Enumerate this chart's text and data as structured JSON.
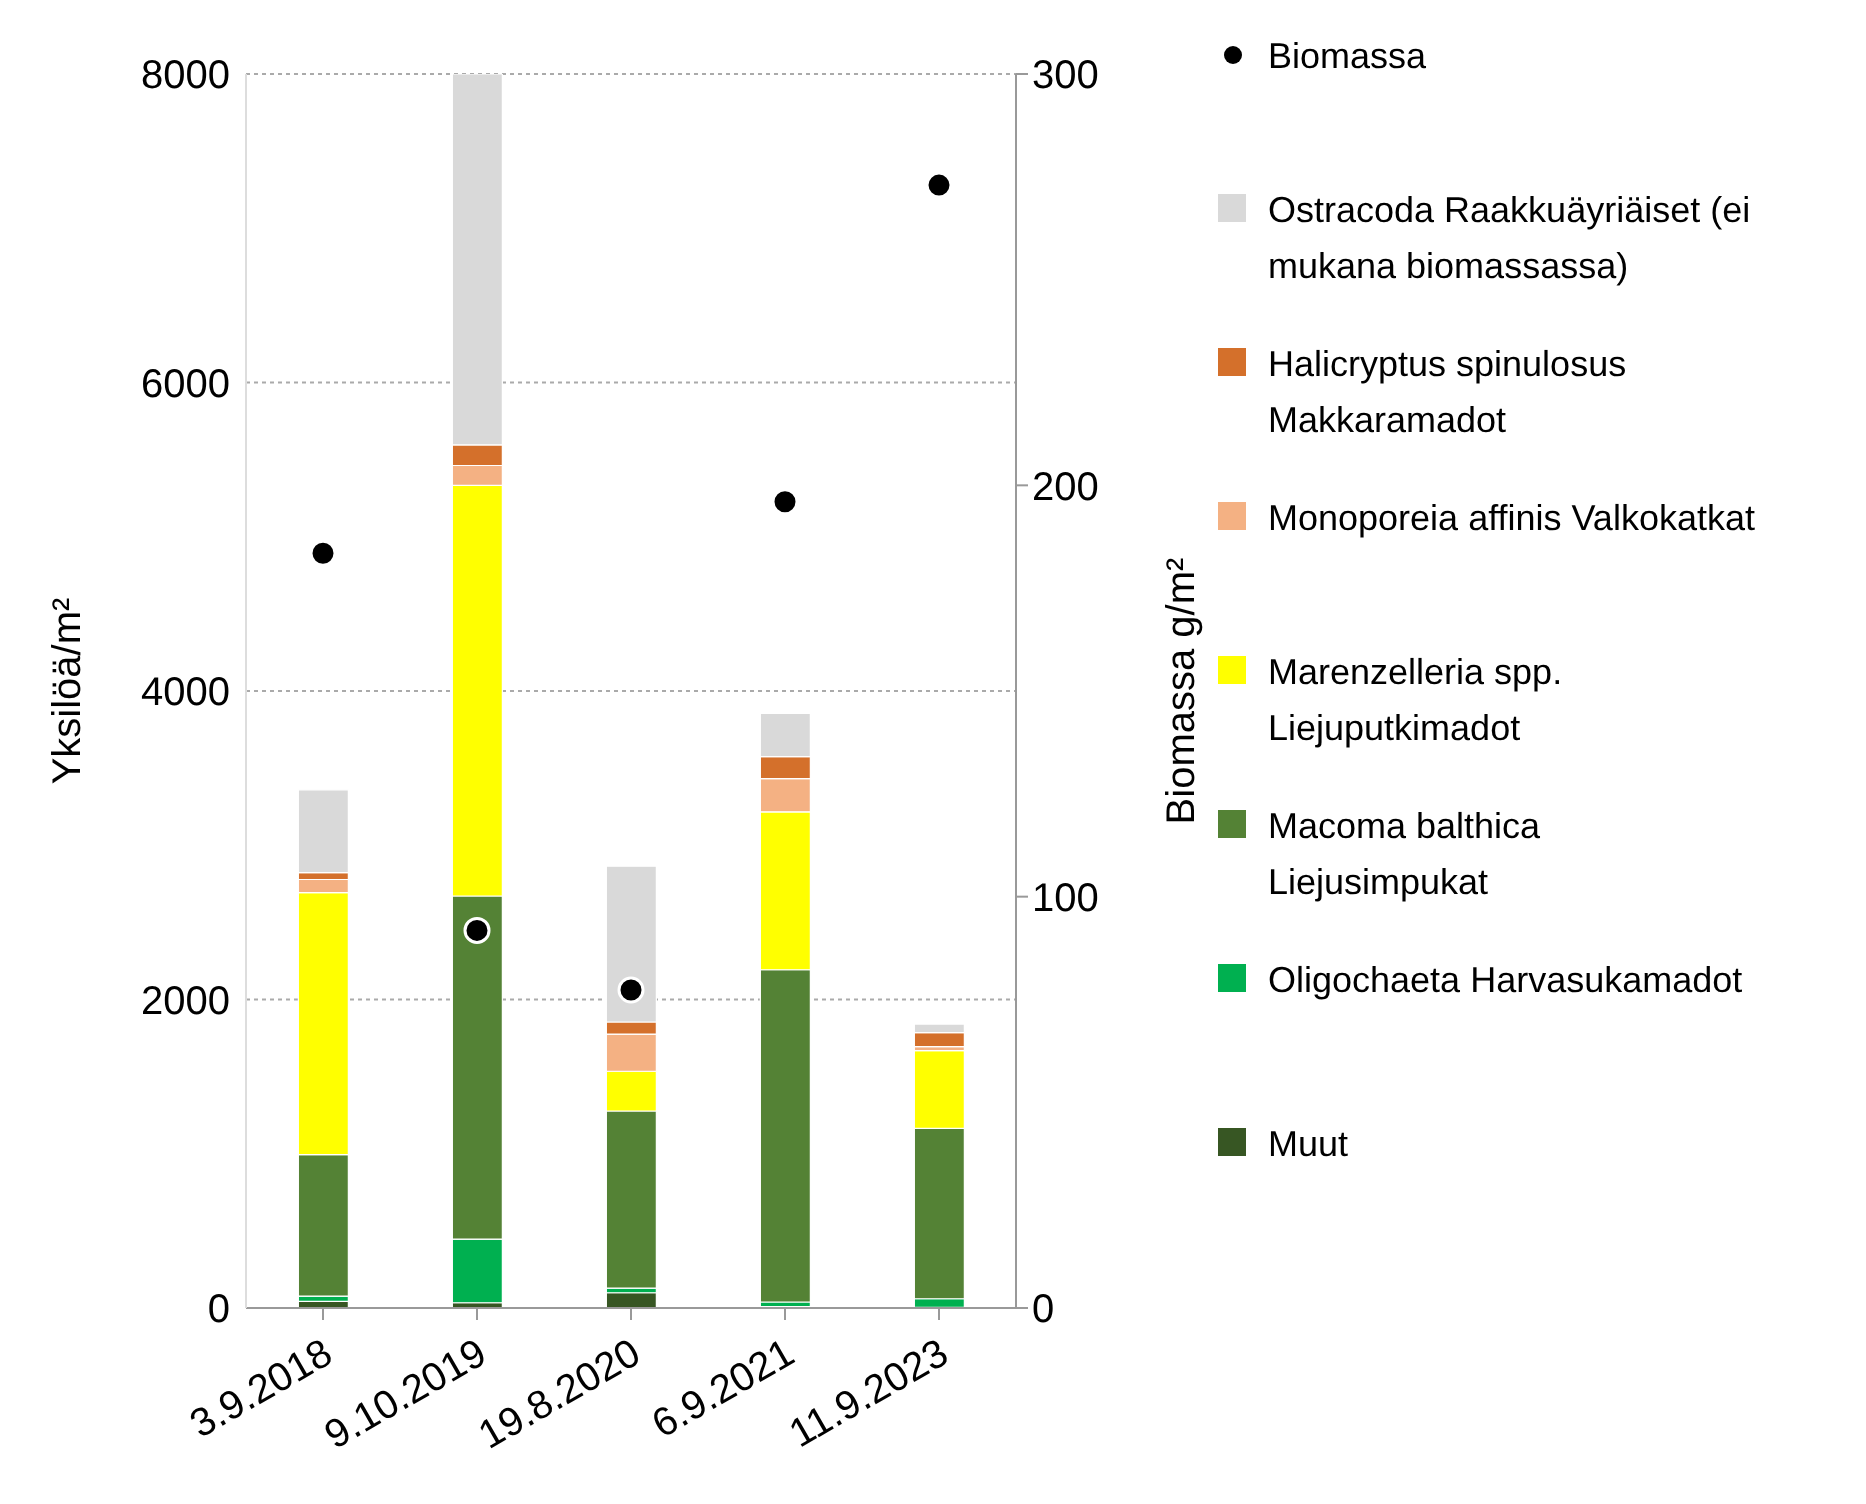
{
  "chart_data": {
    "type": "bar",
    "stacked": true,
    "categories": [
      "3.9.2018",
      "9.10.2019",
      "19.8.2020",
      "6.9.2021",
      "11.9.2023"
    ],
    "ylabel": "Yksilöä/m²",
    "y2label": "Biomassa g/m²",
    "ylim": [
      0,
      8000
    ],
    "yticks": [
      0,
      2000,
      4000,
      6000,
      8000
    ],
    "y2lim": [
      0,
      300
    ],
    "y2ticks": [
      0,
      100,
      200,
      300
    ],
    "grid": "y",
    "legend": "right",
    "series": [
      {
        "name": "Muut",
        "color": "#375623",
        "values": [
          43,
          34,
          99,
          9,
          5
        ]
      },
      {
        "name": "Oligochaeta Harvasukamadot",
        "color": "#00b050",
        "values": [
          34,
          413,
          30,
          30,
          55
        ]
      },
      {
        "name": "Macoma balthica Liejusimpukat",
        "color": "#548235",
        "values": [
          917,
          2224,
          1148,
          2154,
          1105
        ]
      },
      {
        "name": "Marenzelleria spp. Liejuputkimadot",
        "color": "#ffff00",
        "values": [
          1699,
          2662,
          258,
          1024,
          504
        ]
      },
      {
        "name": "Monoporeia affinis Valkokatkat",
        "color": "#f4b183",
        "values": [
          85,
          129,
          241,
          215,
          25
        ]
      },
      {
        "name": "Halicryptus spinulosus Makkaramadot",
        "color": "#d4702b",
        "values": [
          44,
          134,
          78,
          142,
          91
        ]
      },
      {
        "name": "Ostracoda Raakkuäyriäiset (ei mukana biomassassa)",
        "color": "#d9d9d9",
        "values": [
          537,
          2404,
          1010,
          280,
          56
        ]
      },
      {
        "name": "Biomassa",
        "type": "scatter",
        "axis": "y2",
        "marker": "circle",
        "color": "#000000",
        "values": [
          183.5,
          91.8,
          77.3,
          196,
          273
        ]
      }
    ]
  }
}
